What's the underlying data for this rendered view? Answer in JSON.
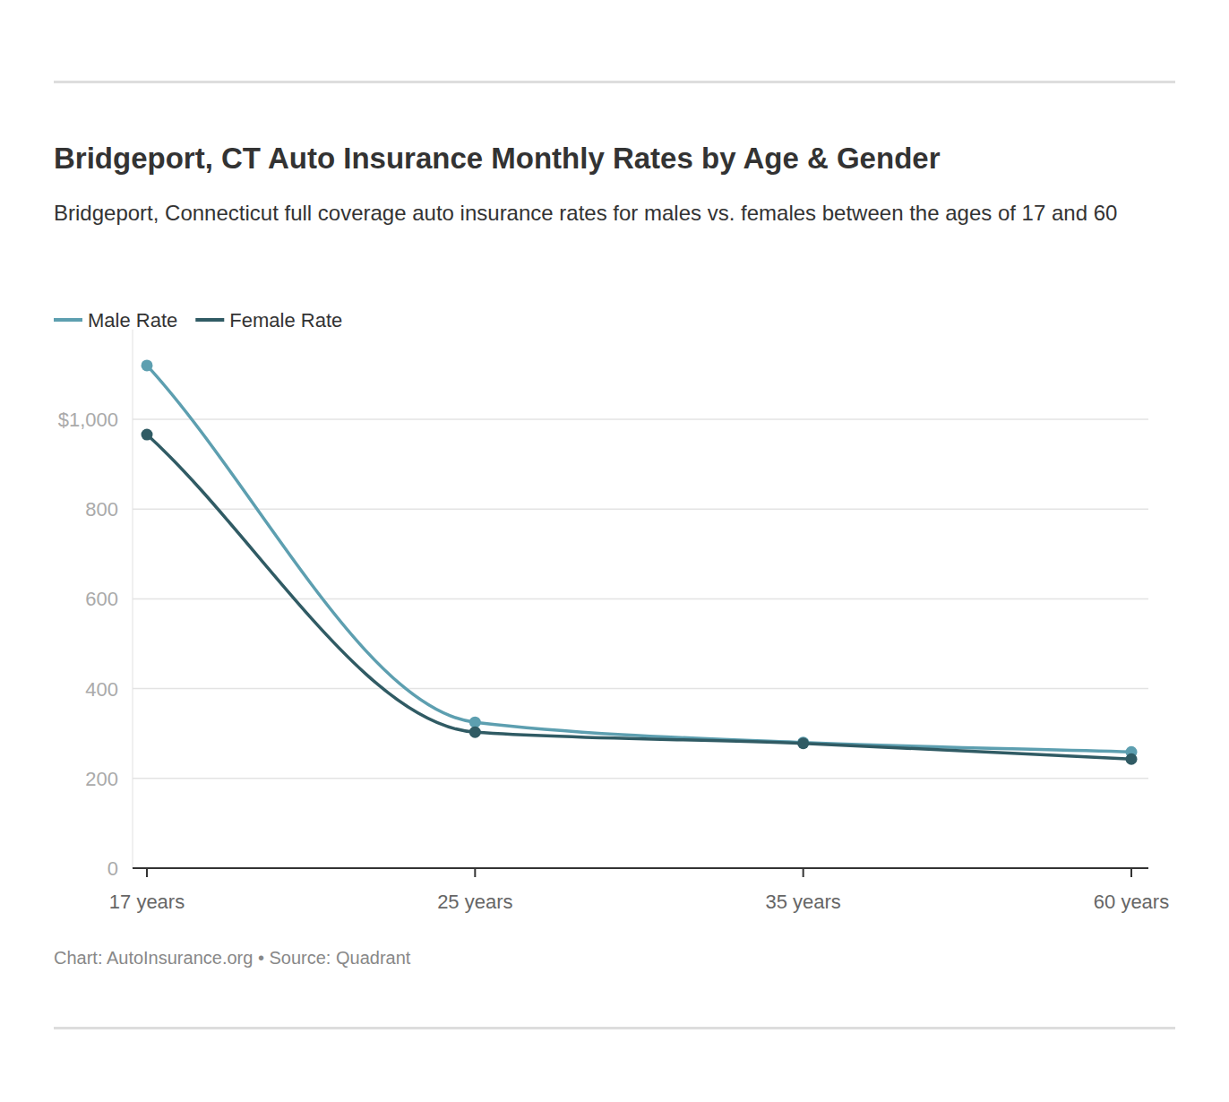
{
  "chart_data": {
    "type": "line",
    "title": "Bridgeport, CT Auto Insurance Monthly Rates by Age & Gender",
    "subtitle": "Bridgeport, Connecticut full coverage auto insurance rates for males vs. females between the ages of 17 and 60",
    "footer": "Chart: AutoInsurance.org • Source: Quadrant",
    "categories": [
      "17 years",
      "25 years",
      "35 years",
      "60 years"
    ],
    "series": [
      {
        "name": "Male Rate",
        "color": "#5d9fb0",
        "marker": "circle",
        "values": [
          1120,
          325,
          280,
          259
        ]
      },
      {
        "name": "Female Rate",
        "color": "#305b64",
        "marker": "circle",
        "values": [
          966,
          303,
          278,
          243
        ]
      }
    ],
    "ylim": [
      0,
      1200
    ],
    "yticks": [
      0,
      200,
      400,
      600,
      800,
      {
        "value": 1000,
        "label": "$1,000"
      }
    ],
    "grid": true,
    "legend": "top-left"
  }
}
